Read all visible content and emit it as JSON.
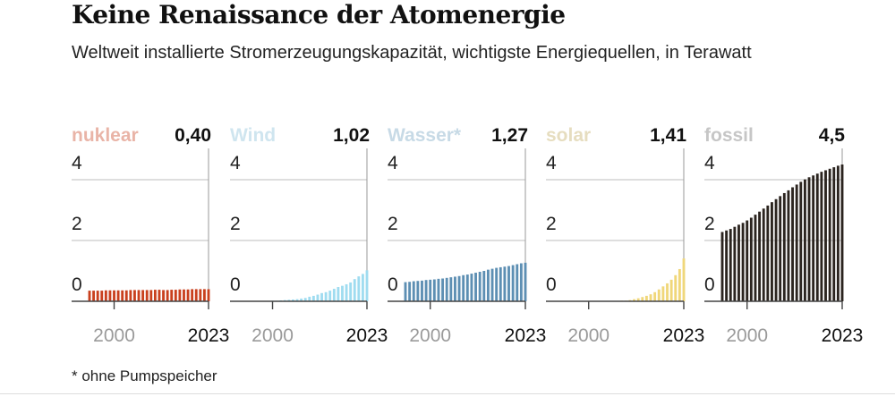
{
  "header": {
    "title": "Keine Renaissance der Atomenergie",
    "subtitle": "Weltweit installierte Stromerzeugungskapazität, wichtigste Energiequellen, in Terawatt"
  },
  "footnote": "* ohne Pumpspeicher",
  "chart_data": [
    {
      "type": "bar",
      "name": "nuklear",
      "color": "#c9401e",
      "label_color": "#e9b4a7",
      "value_label": "0,40",
      "x": [
        1994,
        1995,
        1996,
        1997,
        1998,
        1999,
        2000,
        2001,
        2002,
        2003,
        2004,
        2005,
        2006,
        2007,
        2008,
        2009,
        2010,
        2011,
        2012,
        2013,
        2014,
        2015,
        2016,
        2017,
        2018,
        2019,
        2020,
        2021,
        2022,
        2023
      ],
      "values": [
        0.35,
        0.35,
        0.35,
        0.35,
        0.36,
        0.36,
        0.36,
        0.36,
        0.36,
        0.36,
        0.37,
        0.37,
        0.37,
        0.37,
        0.37,
        0.37,
        0.38,
        0.38,
        0.37,
        0.37,
        0.38,
        0.38,
        0.39,
        0.39,
        0.39,
        0.4,
        0.4,
        0.4,
        0.4,
        0.4
      ],
      "xticks": [
        "2000",
        "2023"
      ],
      "yticks": [
        "0",
        "2",
        "4"
      ],
      "ylim": [
        0,
        4.8
      ]
    },
    {
      "type": "bar",
      "name": "Wind",
      "color": "#9fdcf0",
      "label_color": "#cfe5ef",
      "value_label": "1,02",
      "x": [
        1994,
        1995,
        1996,
        1997,
        1998,
        1999,
        2000,
        2001,
        2002,
        2003,
        2004,
        2005,
        2006,
        2007,
        2008,
        2009,
        2010,
        2011,
        2012,
        2013,
        2014,
        2015,
        2016,
        2017,
        2018,
        2019,
        2020,
        2021,
        2022,
        2023
      ],
      "values": [
        0.0,
        0.0,
        0.01,
        0.01,
        0.01,
        0.01,
        0.02,
        0.02,
        0.03,
        0.04,
        0.05,
        0.06,
        0.07,
        0.09,
        0.11,
        0.15,
        0.18,
        0.22,
        0.27,
        0.3,
        0.35,
        0.41,
        0.47,
        0.51,
        0.56,
        0.62,
        0.73,
        0.82,
        0.9,
        1.02
      ],
      "xticks": [
        "2000",
        "2023"
      ],
      "yticks": [
        "0",
        "2",
        "4"
      ],
      "ylim": [
        0,
        4.8
      ]
    },
    {
      "type": "bar",
      "name": "Wasser*",
      "color": "#5d8fb3",
      "label_color": "#c7dae6",
      "value_label": "1,27",
      "x": [
        1994,
        1995,
        1996,
        1997,
        1998,
        1999,
        2000,
        2001,
        2002,
        2003,
        2004,
        2005,
        2006,
        2007,
        2008,
        2009,
        2010,
        2011,
        2012,
        2013,
        2014,
        2015,
        2016,
        2017,
        2018,
        2019,
        2020,
        2021,
        2022,
        2023
      ],
      "values": [
        0.63,
        0.64,
        0.66,
        0.67,
        0.68,
        0.7,
        0.71,
        0.72,
        0.74,
        0.75,
        0.77,
        0.79,
        0.81,
        0.83,
        0.86,
        0.88,
        0.91,
        0.94,
        0.97,
        1.0,
        1.04,
        1.07,
        1.1,
        1.12,
        1.14,
        1.16,
        1.19,
        1.22,
        1.25,
        1.27
      ],
      "xticks": [
        "2000",
        "2023"
      ],
      "yticks": [
        "0",
        "2",
        "4"
      ],
      "ylim": [
        0,
        4.8
      ]
    },
    {
      "type": "bar",
      "name": "solar",
      "color": "#f0d77a",
      "label_color": "#e6ddbf",
      "value_label": "1,41",
      "x": [
        1994,
        1995,
        1996,
        1997,
        1998,
        1999,
        2000,
        2001,
        2002,
        2003,
        2004,
        2005,
        2006,
        2007,
        2008,
        2009,
        2010,
        2011,
        2012,
        2013,
        2014,
        2015,
        2016,
        2017,
        2018,
        2019,
        2020,
        2021,
        2022,
        2023
      ],
      "values": [
        0.0,
        0.0,
        0.0,
        0.0,
        0.0,
        0.0,
        0.0,
        0.0,
        0.0,
        0.0,
        0.0,
        0.0,
        0.01,
        0.01,
        0.02,
        0.02,
        0.04,
        0.07,
        0.1,
        0.14,
        0.18,
        0.23,
        0.3,
        0.39,
        0.49,
        0.59,
        0.71,
        0.86,
        1.06,
        1.41
      ],
      "xticks": [
        "2000",
        "2023"
      ],
      "yticks": [
        "0",
        "2",
        "4"
      ],
      "ylim": [
        0,
        4.8
      ]
    },
    {
      "type": "bar",
      "name": "fossil",
      "color": "#2b241f",
      "label_color": "#c6c6c6",
      "value_label": "4,5",
      "x": [
        1994,
        1995,
        1996,
        1997,
        1998,
        1999,
        2000,
        2001,
        2002,
        2003,
        2004,
        2005,
        2006,
        2007,
        2008,
        2009,
        2010,
        2011,
        2012,
        2013,
        2014,
        2015,
        2016,
        2017,
        2018,
        2019,
        2020,
        2021,
        2022,
        2023
      ],
      "values": [
        2.28,
        2.33,
        2.38,
        2.45,
        2.52,
        2.58,
        2.66,
        2.75,
        2.85,
        2.95,
        3.05,
        3.15,
        3.26,
        3.36,
        3.46,
        3.56,
        3.65,
        3.75,
        3.84,
        3.93,
        4.01,
        4.08,
        4.14,
        4.2,
        4.26,
        4.31,
        4.36,
        4.41,
        4.46,
        4.5
      ],
      "xticks": [
        "2000",
        "2023"
      ],
      "yticks": [
        "0",
        "2",
        "4"
      ],
      "ylim": [
        0,
        4.8
      ]
    }
  ]
}
